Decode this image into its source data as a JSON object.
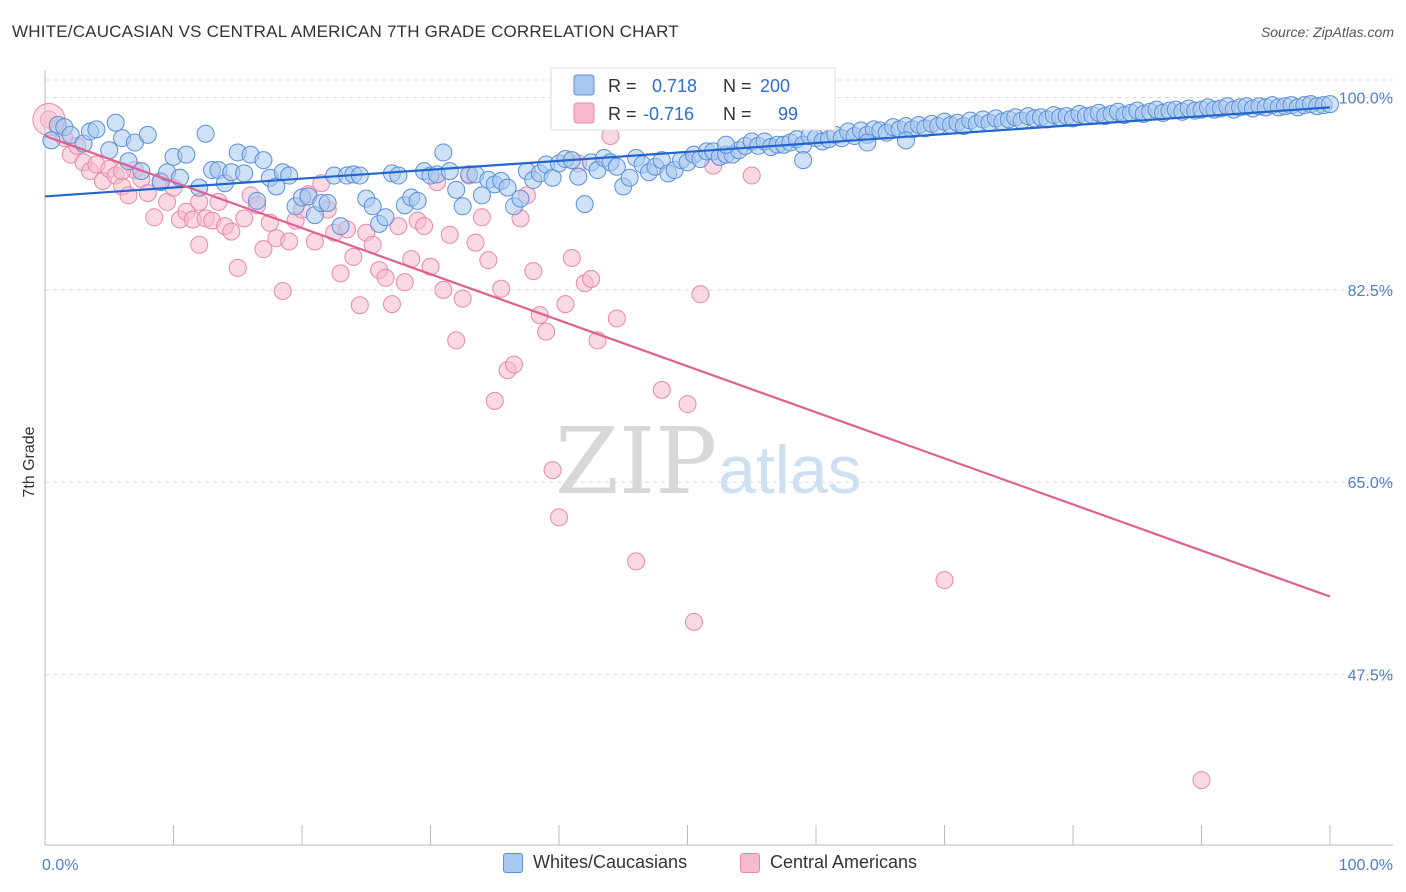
{
  "header": {
    "title": "WHITE/CAUCASIAN VS CENTRAL AMERICAN 7TH GRADE CORRELATION CHART",
    "source": "Source: ZipAtlas.com"
  },
  "watermark": {
    "part1": "ZIP",
    "part2": "atlas"
  },
  "colors": {
    "blue_fill": "#a8c8f0",
    "blue_stroke": "#5b8fd6",
    "blue_line": "#2266cc",
    "pink_fill": "#f6b9cd",
    "pink_stroke": "#e889a8",
    "pink_line": "#e0608f",
    "tick_text": "#4a7fd1",
    "grid": "#dcdcdc"
  },
  "legend": {
    "r_label": "R =",
    "n_label": "N =",
    "items": [
      {
        "r": "0.718",
        "n": "200"
      },
      {
        "r": "-0.716",
        "n": "99"
      }
    ]
  },
  "bottom_legend": [
    "Whites/Caucasians",
    "Central Americans"
  ],
  "chart_data": {
    "type": "scatter",
    "title": "WHITE/CAUCASIAN VS CENTRAL AMERICAN 7TH GRADE CORRELATION CHART",
    "xlabel": "",
    "ylabel": "7th Grade",
    "x_tick_labels": [
      "0.0%",
      "100.0%"
    ],
    "y_tick_labels": [
      "100.0%",
      "82.5%",
      "65.0%",
      "47.5%"
    ],
    "y_ticks": [
      100.0,
      82.5,
      65.0,
      47.5
    ],
    "xlim": [
      0,
      100
    ],
    "ylim": [
      32,
      102.5
    ],
    "grid": true,
    "legend_position": "top-center",
    "series": [
      {
        "name": "Whites/Caucasians",
        "r": 0.718,
        "n": 200,
        "trend": {
          "x": [
            0,
            100
          ],
          "y": [
            91.0,
            99.1
          ]
        },
        "points": [
          [
            0.5,
            96.1
          ],
          [
            1,
            97.5
          ],
          [
            1.5,
            97.3
          ],
          [
            2,
            96.6
          ],
          [
            3,
            95.8
          ],
          [
            3.5,
            96.9
          ],
          [
            4,
            97.1
          ],
          [
            5,
            95.2
          ],
          [
            5.5,
            97.7
          ],
          [
            6,
            96.3
          ],
          [
            6.5,
            94.2
          ],
          [
            7,
            95.9
          ],
          [
            7.5,
            93.3
          ],
          [
            8,
            96.6
          ],
          [
            9,
            92.3
          ],
          [
            9.5,
            93.2
          ],
          [
            10,
            94.6
          ],
          [
            10.5,
            92.7
          ],
          [
            11,
            94.8
          ],
          [
            12,
            91.8
          ],
          [
            12.5,
            96.7
          ],
          [
            13,
            93.4
          ],
          [
            13.5,
            93.4
          ],
          [
            14,
            92.2
          ],
          [
            14.5,
            93.2
          ],
          [
            15,
            95.0
          ],
          [
            15.5,
            93.1
          ],
          [
            16,
            94.8
          ],
          [
            16.5,
            90.6
          ],
          [
            17,
            94.3
          ],
          [
            17.5,
            92.7
          ],
          [
            18,
            91.9
          ],
          [
            18.5,
            93.2
          ],
          [
            19,
            92.9
          ],
          [
            19.5,
            90.1
          ],
          [
            20,
            90.9
          ],
          [
            20.5,
            91.0
          ],
          [
            21,
            89.3
          ],
          [
            21.5,
            90.4
          ],
          [
            22,
            90.4
          ],
          [
            22.5,
            92.9
          ],
          [
            23,
            88.3
          ],
          [
            23.5,
            92.9
          ],
          [
            24,
            93.0
          ],
          [
            24.5,
            92.9
          ],
          [
            25,
            90.8
          ],
          [
            25.5,
            90.1
          ],
          [
            26,
            88.5
          ],
          [
            26.5,
            89.1
          ],
          [
            27,
            93.1
          ],
          [
            27.5,
            92.9
          ],
          [
            28,
            90.2
          ],
          [
            28.5,
            90.9
          ],
          [
            29,
            90.6
          ],
          [
            29.5,
            93.3
          ],
          [
            30,
            92.9
          ],
          [
            30.5,
            93.0
          ],
          [
            31,
            95.0
          ],
          [
            31.5,
            93.3
          ],
          [
            32,
            91.6
          ],
          [
            32.5,
            90.1
          ],
          [
            33,
            93.0
          ],
          [
            33.5,
            93.0
          ],
          [
            34,
            91.1
          ],
          [
            34.5,
            92.5
          ],
          [
            35,
            92.1
          ],
          [
            35.5,
            92.4
          ],
          [
            36,
            91.8
          ],
          [
            36.5,
            90.1
          ],
          [
            37,
            90.8
          ],
          [
            37.5,
            93.3
          ],
          [
            38,
            92.5
          ],
          [
            38.5,
            93.1
          ],
          [
            39,
            93.9
          ],
          [
            39.5,
            92.7
          ],
          [
            40,
            94.0
          ],
          [
            40.5,
            94.4
          ],
          [
            41,
            94.3
          ],
          [
            41.5,
            92.8
          ],
          [
            42,
            90.3
          ],
          [
            42.5,
            94.1
          ],
          [
            43,
            93.4
          ],
          [
            43.5,
            94.5
          ],
          [
            44,
            94.1
          ],
          [
            44.5,
            93.7
          ],
          [
            45,
            91.9
          ],
          [
            45.5,
            92.7
          ],
          [
            46,
            94.5
          ],
          [
            46.5,
            93.9
          ],
          [
            47,
            93.2
          ],
          [
            47.5,
            93.7
          ],
          [
            48,
            94.3
          ],
          [
            48.5,
            93.1
          ],
          [
            49,
            93.4
          ],
          [
            49.5,
            94.3
          ],
          [
            50,
            94.1
          ],
          [
            50.5,
            94.8
          ],
          [
            51,
            94.4
          ],
          [
            51.5,
            95.1
          ],
          [
            52,
            95.1
          ],
          [
            52.5,
            94.6
          ],
          [
            53,
            94.8
          ],
          [
            53.5,
            94.8
          ],
          [
            54,
            95.2
          ],
          [
            54.5,
            95.6
          ],
          [
            55,
            96.0
          ],
          [
            55.5,
            95.6
          ],
          [
            56,
            96.0
          ],
          [
            56.5,
            95.5
          ],
          [
            57,
            95.7
          ],
          [
            57.5,
            95.7
          ],
          [
            58,
            95.9
          ],
          [
            58.5,
            96.2
          ],
          [
            59,
            95.7
          ],
          [
            59.5,
            96.5
          ],
          [
            60,
            96.3
          ],
          [
            60.5,
            96.0
          ],
          [
            61,
            96.2
          ],
          [
            61.5,
            96.6
          ],
          [
            62,
            96.3
          ],
          [
            62.5,
            96.9
          ],
          [
            63,
            96.5
          ],
          [
            63.5,
            97.0
          ],
          [
            64,
            96.6
          ],
          [
            64.5,
            97.1
          ],
          [
            65,
            97.0
          ],
          [
            65.5,
            96.8
          ],
          [
            66,
            97.3
          ],
          [
            66.5,
            97.1
          ],
          [
            67,
            97.4
          ],
          [
            67.5,
            97.1
          ],
          [
            68,
            97.5
          ],
          [
            68.5,
            97.2
          ],
          [
            69,
            97.6
          ],
          [
            69.5,
            97.4
          ],
          [
            70,
            97.8
          ],
          [
            70.5,
            97.5
          ],
          [
            71,
            97.7
          ],
          [
            71.5,
            97.4
          ],
          [
            72,
            97.9
          ],
          [
            72.5,
            97.6
          ],
          [
            73,
            98.0
          ],
          [
            73.5,
            97.7
          ],
          [
            74,
            98.1
          ],
          [
            74.5,
            97.8
          ],
          [
            75,
            98.0
          ],
          [
            75.5,
            98.2
          ],
          [
            76,
            97.9
          ],
          [
            76.5,
            98.3
          ],
          [
            77,
            98.1
          ],
          [
            77.5,
            98.2
          ],
          [
            78,
            98.0
          ],
          [
            78.5,
            98.4
          ],
          [
            79,
            98.2
          ],
          [
            79.5,
            98.3
          ],
          [
            80,
            98.1
          ],
          [
            80.5,
            98.5
          ],
          [
            81,
            98.3
          ],
          [
            81.5,
            98.4
          ],
          [
            82,
            98.6
          ],
          [
            82.5,
            98.3
          ],
          [
            83,
            98.5
          ],
          [
            83.5,
            98.7
          ],
          [
            84,
            98.4
          ],
          [
            84.5,
            98.6
          ],
          [
            85,
            98.8
          ],
          [
            85.5,
            98.5
          ],
          [
            86,
            98.7
          ],
          [
            86.5,
            98.9
          ],
          [
            87,
            98.6
          ],
          [
            87.5,
            98.8
          ],
          [
            88,
            98.9
          ],
          [
            88.5,
            98.7
          ],
          [
            89,
            99.0
          ],
          [
            89.5,
            98.8
          ],
          [
            90,
            98.9
          ],
          [
            90.5,
            99.1
          ],
          [
            91,
            98.9
          ],
          [
            91.5,
            99.0
          ],
          [
            92,
            99.2
          ],
          [
            92.5,
            98.9
          ],
          [
            93,
            99.1
          ],
          [
            93.5,
            99.2
          ],
          [
            94,
            99.0
          ],
          [
            94.5,
            99.2
          ],
          [
            95,
            99.1
          ],
          [
            95.5,
            99.3
          ],
          [
            96,
            99.1
          ],
          [
            96.5,
            99.2
          ],
          [
            97,
            99.3
          ],
          [
            97.5,
            99.1
          ],
          [
            98,
            99.3
          ],
          [
            98.5,
            99.4
          ],
          [
            99,
            99.2
          ],
          [
            99.5,
            99.3
          ],
          [
            100,
            99.4
          ],
          [
            59,
            94.3
          ],
          [
            64,
            95.9
          ],
          [
            67,
            96.1
          ],
          [
            53,
            95.7
          ]
        ]
      },
      {
        "name": "Central Americans",
        "r": -0.716,
        "n": 99,
        "trend": {
          "x": [
            0,
            100
          ],
          "y": [
            96.5,
            54.6
          ]
        },
        "points": [
          [
            0.3,
            98.0
          ],
          [
            1,
            97.2
          ],
          [
            1.5,
            96.3
          ],
          [
            2,
            94.8
          ],
          [
            2.5,
            95.6
          ],
          [
            3,
            94.1
          ],
          [
            3.5,
            93.3
          ],
          [
            4,
            93.9
          ],
          [
            4.5,
            92.4
          ],
          [
            5,
            93.5
          ],
          [
            5.5,
            92.9
          ],
          [
            6,
            91.9
          ],
          [
            6.5,
            91.1
          ],
          [
            7,
            93.4
          ],
          [
            7.5,
            92.6
          ],
          [
            8,
            91.3
          ],
          [
            8.5,
            89.1
          ],
          [
            9,
            92.4
          ],
          [
            9.5,
            90.5
          ],
          [
            10,
            91.8
          ],
          [
            10.5,
            88.9
          ],
          [
            11,
            89.6
          ],
          [
            11.5,
            88.9
          ],
          [
            12,
            90.5
          ],
          [
            12.5,
            89.0
          ],
          [
            13,
            88.8
          ],
          [
            13.5,
            90.5
          ],
          [
            14,
            88.3
          ],
          [
            14.5,
            87.8
          ],
          [
            15,
            84.5
          ],
          [
            15.5,
            89.0
          ],
          [
            16,
            91.1
          ],
          [
            16.5,
            90.2
          ],
          [
            17,
            86.2
          ],
          [
            17.5,
            88.6
          ],
          [
            18,
            87.2
          ],
          [
            18.5,
            82.4
          ],
          [
            19,
            86.9
          ],
          [
            19.5,
            88.8
          ],
          [
            20,
            89.8
          ],
          [
            20.5,
            91.2
          ],
          [
            21,
            86.9
          ],
          [
            21.5,
            92.2
          ],
          [
            22,
            89.8
          ],
          [
            22.5,
            87.7
          ],
          [
            23,
            84.0
          ],
          [
            23.5,
            88.0
          ],
          [
            24,
            85.5
          ],
          [
            24.5,
            81.1
          ],
          [
            25,
            87.7
          ],
          [
            25.5,
            86.6
          ],
          [
            26,
            84.3
          ],
          [
            26.5,
            83.6
          ],
          [
            27,
            81.2
          ],
          [
            27.5,
            88.3
          ],
          [
            28,
            83.2
          ],
          [
            28.5,
            85.3
          ],
          [
            29,
            88.8
          ],
          [
            29.5,
            88.3
          ],
          [
            30,
            84.6
          ],
          [
            30.5,
            92.3
          ],
          [
            31,
            82.5
          ],
          [
            31.5,
            87.5
          ],
          [
            32,
            77.9
          ],
          [
            32.5,
            81.7
          ],
          [
            33,
            92.9
          ],
          [
            33.5,
            86.8
          ],
          [
            34,
            89.1
          ],
          [
            34.5,
            85.2
          ],
          [
            35,
            72.4
          ],
          [
            35.5,
            82.6
          ],
          [
            36,
            75.2
          ],
          [
            36.5,
            75.7
          ],
          [
            37,
            89.0
          ],
          [
            37.5,
            91.1
          ],
          [
            38,
            84.2
          ],
          [
            38.5,
            80.2
          ],
          [
            39,
            78.7
          ],
          [
            39.5,
            66.1
          ],
          [
            40,
            61.8
          ],
          [
            40.5,
            81.2
          ],
          [
            41,
            85.4
          ],
          [
            41.5,
            94.0
          ],
          [
            42,
            83.1
          ],
          [
            42.5,
            83.5
          ],
          [
            43,
            77.9
          ],
          [
            44,
            96.5
          ],
          [
            44.5,
            79.9
          ],
          [
            46,
            57.8
          ],
          [
            48,
            73.4
          ],
          [
            50,
            72.1
          ],
          [
            50.5,
            52.3
          ],
          [
            51,
            82.1
          ],
          [
            52,
            93.8
          ],
          [
            55,
            92.9
          ],
          [
            70,
            56.1
          ],
          [
            90,
            37.9
          ],
          [
            12,
            86.6
          ],
          [
            6,
            93.3
          ]
        ]
      }
    ]
  }
}
